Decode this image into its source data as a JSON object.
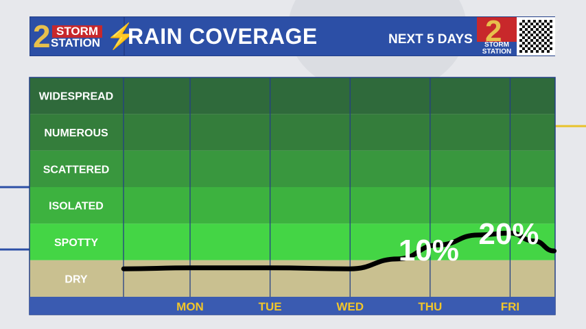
{
  "header": {
    "logo_number": "2",
    "logo_storm": "STORM",
    "logo_station": "STATION",
    "title": "RAIN COVERAGE",
    "subtitle": "NEXT 5 DAYS",
    "badge_number": "2",
    "badge_text": "STORM STATION"
  },
  "colors": {
    "header": "#2c4fa6",
    "axis_bar": "#3a5bb1",
    "day_text": "#f2c62a"
  },
  "chart_data": {
    "type": "line",
    "title": "RAIN COVERAGE",
    "categories": [
      "MON",
      "TUE",
      "WED",
      "THU",
      "FRI"
    ],
    "levels": [
      {
        "label": "WIDESPREAD",
        "color": "#2f6a3b"
      },
      {
        "label": "NUMEROUS",
        "color": "#347d3b"
      },
      {
        "label": "SCATTERED",
        "color": "#39973e"
      },
      {
        "label": "ISOLATED",
        "color": "#3db23f"
      },
      {
        "label": "SPOTTY",
        "color": "#44d545"
      },
      {
        "label": "DRY",
        "color": "#c9c090"
      }
    ],
    "curve": {
      "x_day": [
        0.17,
        1,
        2,
        3,
        3.6,
        4.1,
        4.6,
        5,
        5.3,
        5.55
      ],
      "coverage_pct": [
        2,
        2.5,
        2.5,
        2,
        7,
        14,
        19,
        20,
        16,
        11
      ]
    },
    "annotations": [
      {
        "day": "THU",
        "text": "10%"
      },
      {
        "day": "FRI",
        "text": "20%"
      }
    ],
    "ylabel": "",
    "xlabel": ""
  }
}
